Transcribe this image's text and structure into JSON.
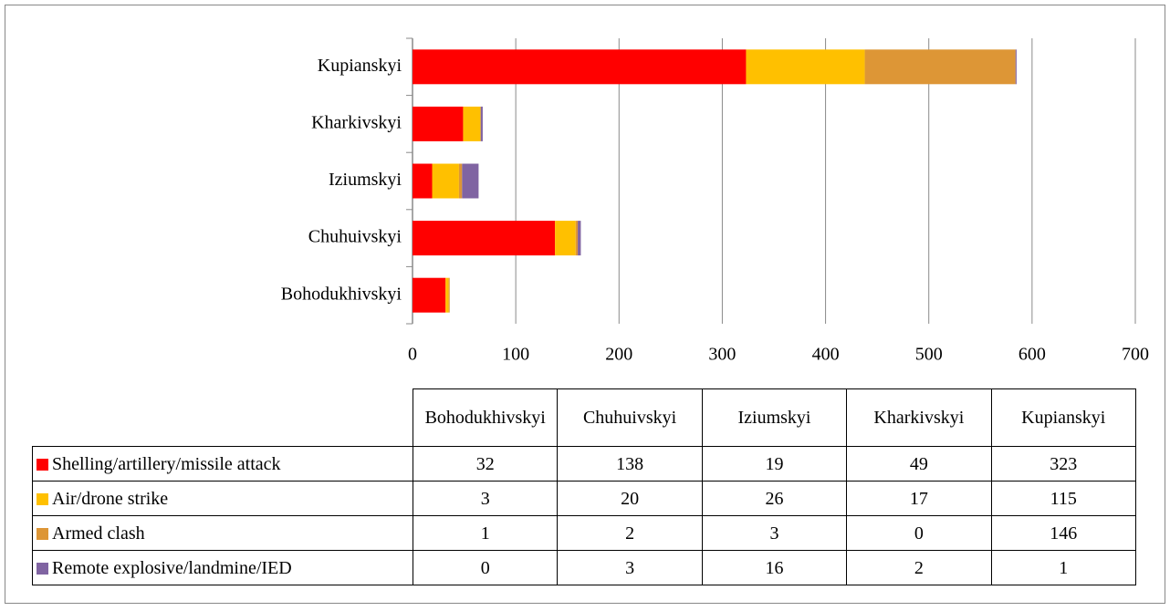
{
  "chart_data": {
    "type": "bar",
    "orientation": "horizontal",
    "stacked": true,
    "categories": [
      "Bohodukhivskyi",
      "Chuhuivskyi",
      "Iziumskyi",
      "Kharkivskyi",
      "Kupianskyi"
    ],
    "series": [
      {
        "name": "Shelling/artillery/missile attack",
        "color": "#ff0000",
        "values": [
          32,
          138,
          19,
          49,
          323
        ]
      },
      {
        "name": "Air/drone strike",
        "color": "#ffc000",
        "values": [
          3,
          20,
          26,
          17,
          115
        ]
      },
      {
        "name": "Armed clash",
        "color": "#dd9636",
        "values": [
          1,
          2,
          3,
          0,
          146
        ]
      },
      {
        "name": "Remote explosive/landmine/IED",
        "color": "#8064a2",
        "values": [
          0,
          3,
          16,
          2,
          1
        ]
      }
    ],
    "xlim": [
      0,
      700
    ],
    "xticks": [
      0,
      100,
      200,
      300,
      400,
      500,
      600,
      700
    ],
    "grid": true
  }
}
